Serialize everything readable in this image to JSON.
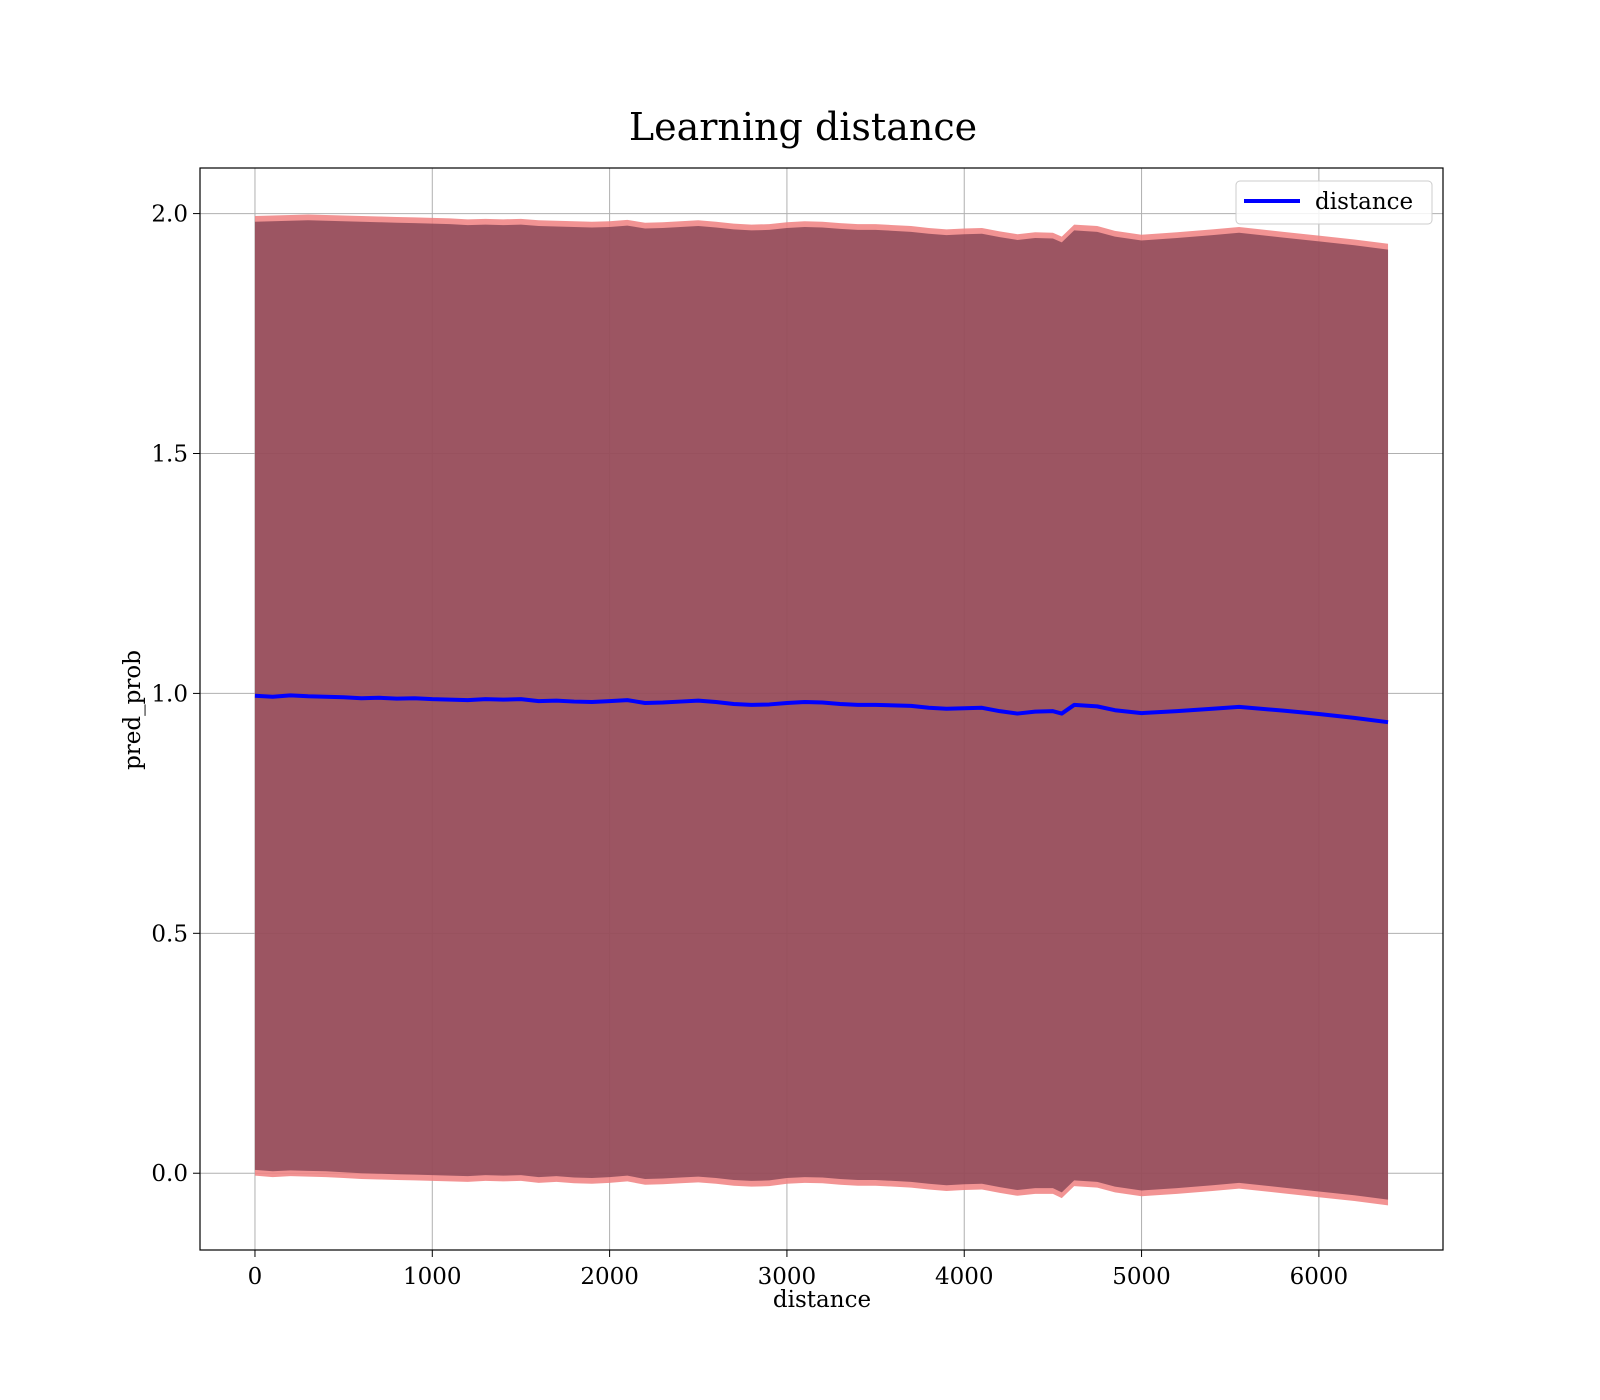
{
  "chart_data": {
    "type": "line",
    "title": "Learning distance",
    "xlabel": "distance",
    "ylabel": "pred_prob",
    "xlim": [
      -310,
      6700
    ],
    "ylim": [
      -0.16,
      2.095
    ],
    "xticks": [
      0,
      1000,
      2000,
      3000,
      4000,
      5000,
      6000
    ],
    "xtick_labels": [
      "0",
      "1000",
      "2000",
      "3000",
      "4000",
      "5000",
      "6000"
    ],
    "yticks": [
      0.0,
      0.5,
      1.0,
      1.5,
      2.0
    ],
    "ytick_labels": [
      "0.0",
      "0.5",
      "1.0",
      "1.5",
      "2.0"
    ],
    "grid": true,
    "legend": {
      "placement": "top-right",
      "entries": [
        "distance"
      ]
    },
    "colors": {
      "line": "#0000ff",
      "band_fill": "#7a3d4f",
      "band_edge": "#f08080",
      "grid": "#b0b0b0"
    },
    "series": [
      {
        "name": "distance",
        "kind": "line",
        "x": [
          0,
          100,
          200,
          300,
          400,
          500,
          600,
          700,
          800,
          900,
          1000,
          1100,
          1200,
          1300,
          1400,
          1500,
          1600,
          1700,
          1800,
          1900,
          2000,
          2100,
          2200,
          2300,
          2400,
          2500,
          2600,
          2700,
          2800,
          2900,
          3000,
          3100,
          3200,
          3300,
          3400,
          3500,
          3600,
          3700,
          3800,
          3900,
          4000,
          4100,
          4200,
          4300,
          4400,
          4500,
          4550,
          4620,
          4750,
          4850,
          5000,
          5200,
          5400,
          5550,
          5800,
          6000,
          6200,
          6390
        ],
        "y": [
          0.995,
          0.993,
          0.996,
          0.994,
          0.993,
          0.992,
          0.99,
          0.991,
          0.989,
          0.99,
          0.988,
          0.987,
          0.986,
          0.988,
          0.987,
          0.988,
          0.984,
          0.985,
          0.983,
          0.982,
          0.984,
          0.986,
          0.98,
          0.981,
          0.983,
          0.985,
          0.982,
          0.978,
          0.976,
          0.977,
          0.98,
          0.982,
          0.981,
          0.978,
          0.976,
          0.976,
          0.975,
          0.974,
          0.97,
          0.968,
          0.969,
          0.97,
          0.963,
          0.958,
          0.962,
          0.963,
          0.958,
          0.976,
          0.973,
          0.965,
          0.959,
          0.963,
          0.968,
          0.972,
          0.964,
          0.957,
          0.949,
          0.94
        ]
      },
      {
        "kind": "band_upper",
        "x": [
          0,
          100,
          200,
          300,
          400,
          500,
          600,
          700,
          800,
          900,
          1000,
          1100,
          1200,
          1300,
          1400,
          1500,
          1600,
          1700,
          1800,
          1900,
          2000,
          2100,
          2200,
          2300,
          2400,
          2500,
          2600,
          2700,
          2800,
          2900,
          3000,
          3100,
          3200,
          3300,
          3400,
          3500,
          3600,
          3700,
          3800,
          3900,
          4000,
          4100,
          4200,
          4300,
          4400,
          4500,
          4550,
          4620,
          4750,
          4850,
          5000,
          5200,
          5400,
          5550,
          5800,
          6000,
          6200,
          6390
        ],
        "y": [
          1.983,
          1.984,
          1.985,
          1.986,
          1.985,
          1.984,
          1.983,
          1.982,
          1.981,
          1.98,
          1.979,
          1.978,
          1.976,
          1.977,
          1.976,
          1.977,
          1.974,
          1.973,
          1.972,
          1.971,
          1.972,
          1.975,
          1.969,
          1.97,
          1.972,
          1.974,
          1.971,
          1.967,
          1.965,
          1.966,
          1.97,
          1.972,
          1.971,
          1.968,
          1.966,
          1.966,
          1.964,
          1.962,
          1.958,
          1.955,
          1.957,
          1.958,
          1.951,
          1.945,
          1.949,
          1.948,
          1.94,
          1.965,
          1.962,
          1.952,
          1.944,
          1.949,
          1.955,
          1.96,
          1.95,
          1.942,
          1.934,
          1.925
        ]
      },
      {
        "kind": "band_lower",
        "x": [
          0,
          100,
          200,
          300,
          400,
          500,
          600,
          700,
          800,
          900,
          1000,
          1100,
          1200,
          1300,
          1400,
          1500,
          1600,
          1700,
          1800,
          1900,
          2000,
          2100,
          2200,
          2300,
          2400,
          2500,
          2600,
          2700,
          2800,
          2900,
          3000,
          3100,
          3200,
          3300,
          3400,
          3500,
          3600,
          3700,
          3800,
          3900,
          4000,
          4100,
          4200,
          4300,
          4400,
          4500,
          4550,
          4620,
          4750,
          4850,
          5000,
          5200,
          5400,
          5550,
          5800,
          6000,
          6200,
          6390
        ],
        "y": [
          0.007,
          0.004,
          0.006,
          0.005,
          0.004,
          0.002,
          0.0,
          -0.001,
          -0.002,
          -0.003,
          -0.004,
          -0.005,
          -0.006,
          -0.004,
          -0.005,
          -0.004,
          -0.008,
          -0.006,
          -0.009,
          -0.01,
          -0.008,
          -0.005,
          -0.012,
          -0.011,
          -0.009,
          -0.007,
          -0.01,
          -0.014,
          -0.016,
          -0.015,
          -0.01,
          -0.008,
          -0.009,
          -0.012,
          -0.014,
          -0.014,
          -0.016,
          -0.018,
          -0.022,
          -0.025,
          -0.023,
          -0.022,
          -0.029,
          -0.035,
          -0.031,
          -0.031,
          -0.04,
          -0.015,
          -0.018,
          -0.028,
          -0.036,
          -0.031,
          -0.025,
          -0.02,
          -0.03,
          -0.038,
          -0.046,
          -0.055
        ]
      }
    ]
  }
}
